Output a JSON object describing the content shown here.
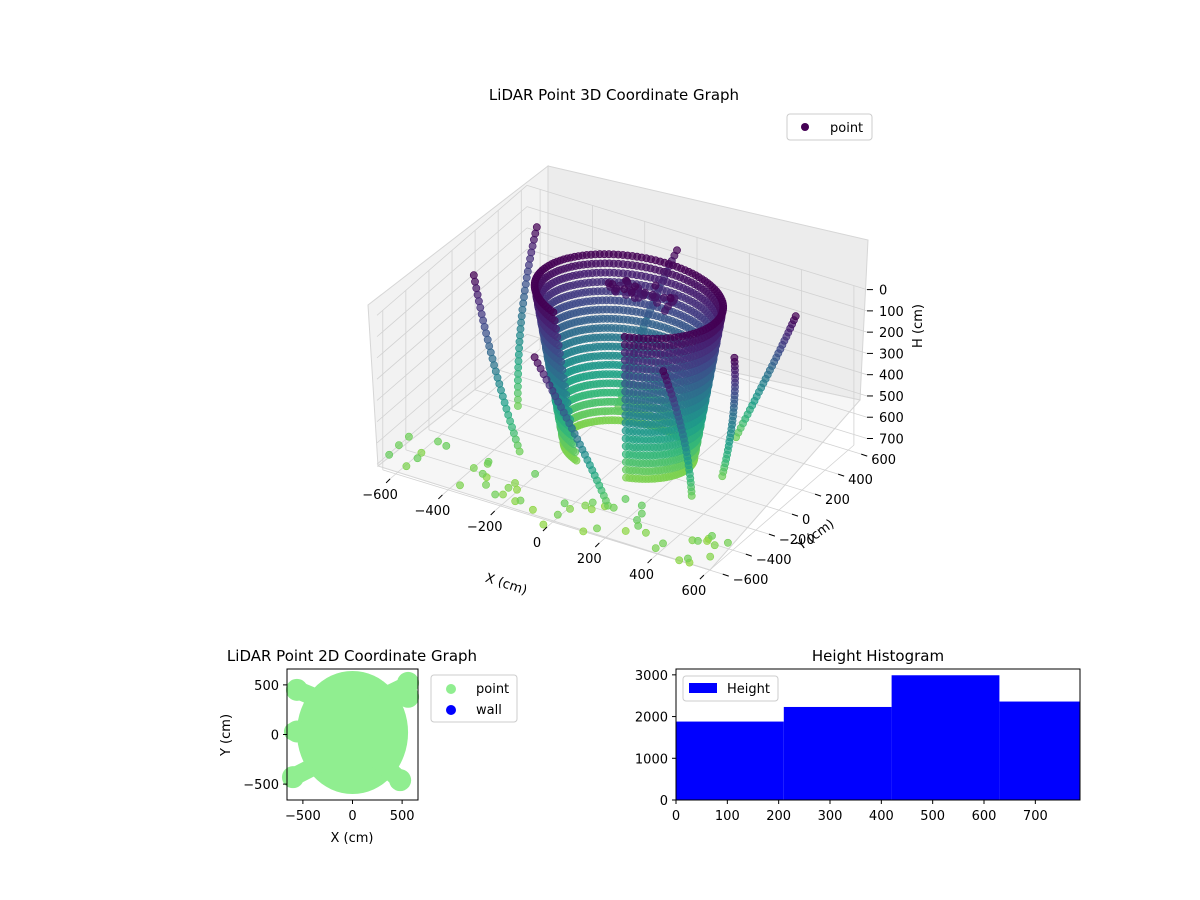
{
  "figure": {
    "background": "#ffffff"
  },
  "chart_data": [
    {
      "type": "scatter",
      "projection": "3d",
      "title": "LiDAR Point 3D Coordinate Graph",
      "xlabel": "X (cm)",
      "ylabel": "Y (cm)",
      "zlabel": "H (cm)",
      "x_ticks": [
        "−600",
        "−400",
        "−200",
        "0",
        "200",
        "400",
        "600"
      ],
      "y_ticks": [
        "−600",
        "−400",
        "−200",
        "0",
        "200",
        "400",
        "600"
      ],
      "z_ticks": [
        "0",
        "100",
        "200",
        "300",
        "400",
        "500",
        "600",
        "700"
      ],
      "xlim": [
        -650,
        650
      ],
      "ylim": [
        -650,
        650
      ],
      "zlim": [
        750,
        0
      ],
      "z_inverted": true,
      "grid": true,
      "colormap": "viridis",
      "color_by": "height",
      "legend": {
        "entries": [
          "point"
        ],
        "placement": "upper-right",
        "marker_color": "#440154"
      },
      "series": [
        {
          "name": "point",
          "shape": "cylindrical wall sweep plus outer arc strands and scattered low points"
        }
      ]
    },
    {
      "type": "scatter",
      "title": "LiDAR Point 2D Coordinate Graph",
      "xlabel": "X (cm)",
      "ylabel": "Y (cm)",
      "x_ticks": [
        "−500",
        "0",
        "500"
      ],
      "y_ticks": [
        "500",
        "0",
        "−500"
      ],
      "xlim": [
        -660,
        660
      ],
      "ylim": [
        -660,
        660
      ],
      "legend": {
        "entries": [
          "point",
          "wall"
        ],
        "placement": "outside-right"
      },
      "series": [
        {
          "name": "point",
          "color": "#90ee90"
        },
        {
          "name": "wall",
          "color": "#0000ff"
        }
      ]
    },
    {
      "type": "bar",
      "title": "Height Histogram",
      "legend": {
        "entries": [
          "Height"
        ],
        "placement": "upper-left"
      },
      "bin_edges": [
        0,
        210,
        420,
        630,
        787
      ],
      "values": [
        1880,
        2230,
        2990,
        2360
      ],
      "x_ticks": [
        "0",
        "100",
        "200",
        "300",
        "400",
        "500",
        "600",
        "700"
      ],
      "y_ticks": [
        "0",
        "1000",
        "2000",
        "3000"
      ],
      "xlim": [
        0,
        787
      ],
      "ylim": [
        0,
        3140
      ],
      "series": [
        {
          "name": "Height",
          "color": "#0000ff"
        }
      ]
    }
  ]
}
